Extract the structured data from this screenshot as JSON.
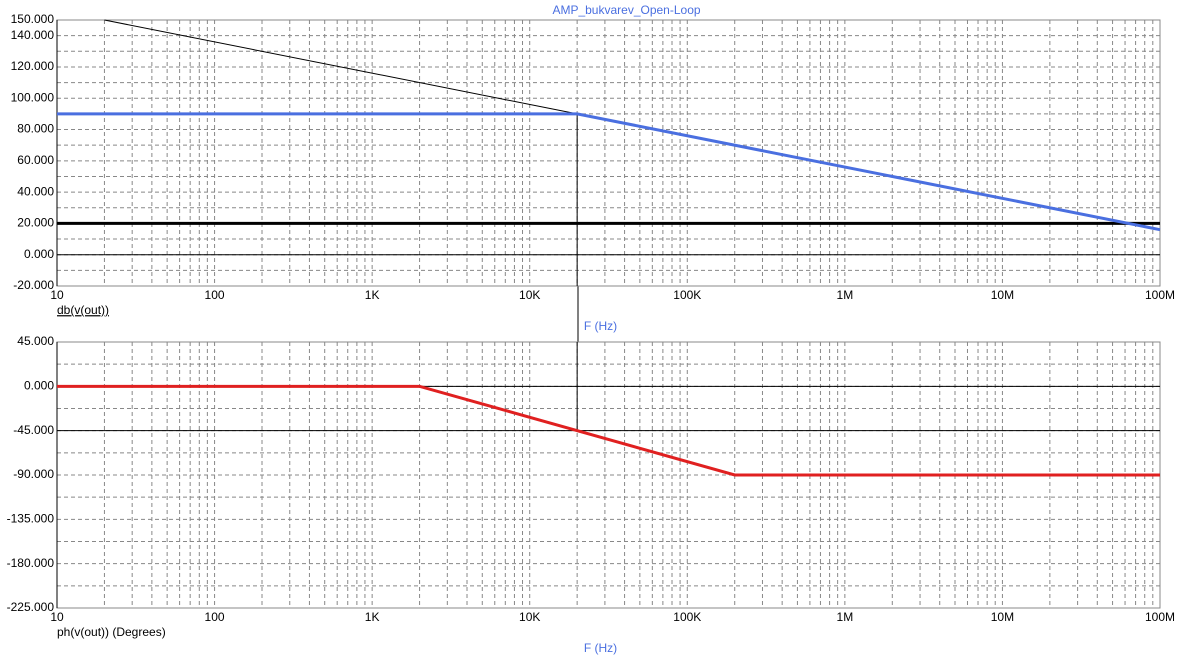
{
  "chart_data": [
    {
      "type": "line",
      "title": "AMP_bukvarev_Open-Loop",
      "y_label": "db(v(out))",
      "x_label": "F (Hz)",
      "x_scale": "log",
      "grid": true,
      "minor_grid": true,
      "zero_line": true,
      "xlim": [
        10,
        100000000
      ],
      "xticks": [
        10,
        100,
        {
          "value": 1000,
          "label": "1K"
        },
        {
          "value": 10000,
          "label": "10K"
        },
        {
          "value": 100000,
          "label": "100K"
        },
        {
          "value": 1000000,
          "label": "1M"
        },
        {
          "value": 10000000,
          "label": "10M"
        },
        {
          "value": 100000000,
          "label": "100M"
        }
      ],
      "ylim": [
        -20,
        150
      ],
      "yticks": [
        {
          "value": -20,
          "label": "-20.000"
        },
        {
          "value": 0,
          "label": "0.000"
        },
        {
          "value": 20,
          "label": "20.000"
        },
        {
          "value": 40,
          "label": "40.000"
        },
        {
          "value": 60,
          "label": "60.000"
        },
        {
          "value": 80,
          "label": "80.000"
        },
        {
          "value": 100,
          "label": "100.000"
        },
        {
          "value": 120,
          "label": "120.000"
        },
        {
          "value": 140,
          "label": "140.000"
        },
        {
          "value": 150,
          "label": "150.000"
        }
      ],
      "series": [
        {
          "color": "#000000",
          "width": 1,
          "x": [
            20,
            20000
          ],
          "values": [
            150,
            90
          ]
        },
        {
          "color": "#000000",
          "width": 3,
          "x": [
            10,
            100000000
          ],
          "values": [
            20,
            20
          ]
        },
        {
          "color": "#000000",
          "width": 1,
          "x": [
            20000,
            20000
          ],
          "values": [
            90,
            -20
          ]
        },
        {
          "color": "#4a6fe0",
          "width": 3,
          "x": [
            10,
            20000,
            100000000
          ],
          "values": [
            90,
            90,
            16
          ]
        }
      ]
    },
    {
      "type": "line",
      "y_label": "ph(v(out)) (Degrees)",
      "x_label": "F (Hz)",
      "x_scale": "log",
      "grid": true,
      "minor_grid": true,
      "zero_line": true,
      "xlim": [
        10,
        100000000
      ],
      "xticks": [
        10,
        100,
        {
          "value": 1000,
          "label": "1K"
        },
        {
          "value": 10000,
          "label": "10K"
        },
        {
          "value": 100000,
          "label": "100K"
        },
        {
          "value": 1000000,
          "label": "1M"
        },
        {
          "value": 10000000,
          "label": "10M"
        },
        {
          "value": 100000000,
          "label": "100M"
        }
      ],
      "ylim": [
        -225,
        45
      ],
      "yticks": [
        {
          "value": -225,
          "label": "-225.000"
        },
        {
          "value": -180,
          "label": "-180.000"
        },
        {
          "value": -135,
          "label": "-135.000"
        },
        {
          "value": -90,
          "label": "-90.000"
        },
        {
          "value": -45,
          "label": "-45.000"
        },
        {
          "value": 0,
          "label": "0.000"
        },
        {
          "value": 45,
          "label": "45.000"
        }
      ],
      "series": [
        {
          "color": "#000000",
          "width": 1,
          "x": [
            10,
            100000000
          ],
          "values": [
            -45,
            -45
          ]
        },
        {
          "color": "#000000",
          "width": 1,
          "x": [
            20000,
            20000
          ],
          "values": [
            45,
            -45
          ]
        },
        {
          "color": "#e02020",
          "width": 3,
          "x": [
            10,
            2000,
            200000,
            100000000
          ],
          "values": [
            0,
            0,
            -90,
            -90
          ]
        }
      ]
    }
  ]
}
